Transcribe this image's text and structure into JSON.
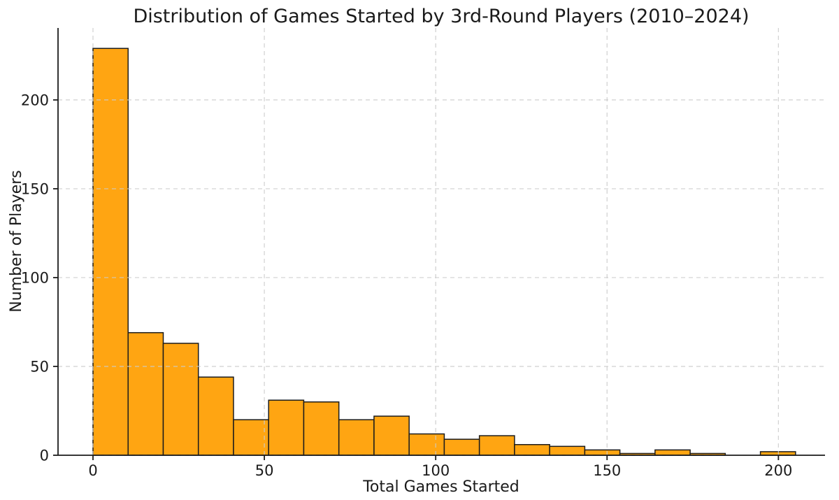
{
  "chart_data": {
    "type": "bar",
    "subtype": "histogram",
    "title": "Distribution of Games Started by 3rd-Round Players (2010–2024)",
    "xlabel": "Total Games Started",
    "ylabel": "Number of Players",
    "bin_edges": [
      0,
      10.25,
      20.5,
      30.75,
      41,
      51.25,
      61.5,
      71.75,
      82,
      92.25,
      102.5,
      112.75,
      123,
      133.25,
      143.5,
      153.75,
      164,
      174.25,
      184.5,
      194.75,
      205
    ],
    "counts": [
      229,
      69,
      63,
      44,
      20,
      31,
      30,
      20,
      22,
      12,
      9,
      11,
      6,
      5,
      3,
      1,
      3,
      1,
      0,
      2
    ],
    "xticks": [
      0,
      50,
      100,
      150,
      200
    ],
    "yticks": [
      0,
      50,
      100,
      150,
      200
    ],
    "xlim": [
      -10.2,
      213.6
    ],
    "ylim": [
      0,
      240.5
    ],
    "grid": true,
    "grid_style": "dashed",
    "grid_above_bars": true,
    "colors": {
      "bar_fill": "#FFA512",
      "bar_edge": "#1c1c1c",
      "grid": "#cccccc",
      "spine": "#1c1c1c",
      "text": "#1a1a1a",
      "background": "#ffffff"
    }
  }
}
